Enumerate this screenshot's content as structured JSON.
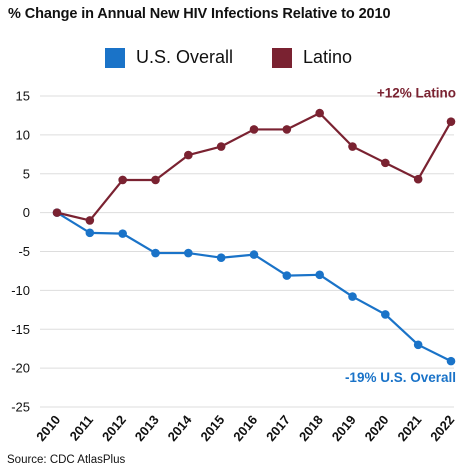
{
  "chart_data": {
    "type": "line",
    "title": "% Change in Annual New HIV Infections Relative to 2010",
    "x": [
      "2010",
      "2011",
      "2012",
      "2013",
      "2014",
      "2015",
      "2016",
      "2017",
      "2018",
      "2019",
      "2020",
      "2021",
      "2022"
    ],
    "ylim": [
      -25,
      15
    ],
    "yticks": [
      15,
      10,
      5,
      0,
      -5,
      -10,
      -15,
      -20,
      -25
    ],
    "grid": true,
    "legend_position": "top",
    "series": [
      {
        "name": "U.S. Overall",
        "color": "#1a73c8",
        "values": [
          0,
          -2.6,
          -2.7,
          -5.2,
          -5.2,
          -5.8,
          -5.4,
          -8.1,
          -8.0,
          -10.8,
          -13.1,
          -17.0,
          -19.1
        ]
      },
      {
        "name": "Latino",
        "color": "#7a2231",
        "values": [
          0,
          -1.0,
          4.2,
          4.2,
          7.4,
          8.5,
          10.7,
          10.7,
          12.8,
          8.5,
          6.4,
          4.3,
          11.7
        ]
      }
    ],
    "annotations": [
      {
        "text": "+12% Latino",
        "series": "Latino",
        "color": "#7a2231"
      },
      {
        "text": "-19% U.S. Overall",
        "series": "U.S. Overall",
        "color": "#1a73c8"
      }
    ],
    "source": "Source: CDC AtlasPlus"
  }
}
